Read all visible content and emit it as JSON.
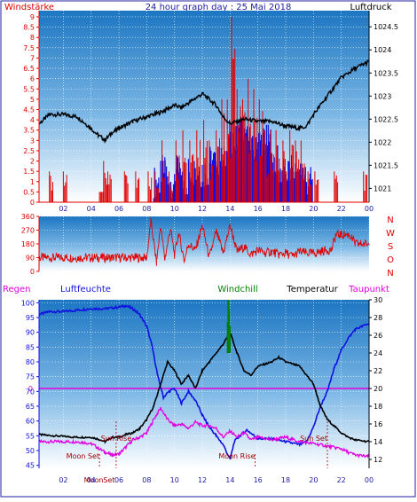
{
  "colors": {
    "red": "#e00000",
    "blue": "#1010e0",
    "navy": "#2020a0",
    "magenta": "#e000e0",
    "black": "#000000",
    "green": "#008000",
    "darkred": "#a00000"
  },
  "header": {
    "left": "Windstärke",
    "center": "24 hour graph day : 25 Mai 2018",
    "right": "Luftdruck"
  },
  "middle": {
    "right_letters": [
      "N",
      "W",
      "S",
      "O",
      "N"
    ]
  },
  "bottom_header": {
    "regen": "Regen",
    "luftfeuchte": "Luftfeuchte",
    "windchill": "Windchill",
    "temperatur": "Temperatur",
    "taupunkt": "Taupunkt"
  },
  "chart_data": [
    {
      "type": "line",
      "panel": "wind-pressure",
      "x_ticks": [
        "02",
        "04",
        "06",
        "08",
        "10",
        "12",
        "14",
        "16",
        "18",
        "20",
        "22",
        "00"
      ],
      "left_axis_ticks": [
        "0",
        "0.5",
        "1",
        "1.5",
        "2",
        "2.5",
        "3",
        "3.5",
        "4",
        "4.5",
        "5",
        "5.5",
        "6",
        "6.5",
        "7",
        "7.5",
        "8",
        "8.5",
        "9"
      ],
      "left_range": [
        0,
        9.3
      ],
      "right_axis_ticks": [
        "1021",
        "1021.5",
        "1022",
        "1022.5",
        "1023",
        "1023.5",
        "1024",
        "1024.5"
      ],
      "right_range": [
        1020.7,
        1024.85
      ],
      "series": [
        {
          "color": "black",
          "x": [
            0.25,
            1,
            2,
            3,
            4,
            4.5,
            5,
            5.5,
            6,
            7,
            8,
            9,
            10,
            10.5,
            11,
            12,
            13,
            13.5,
            14,
            15,
            16,
            17,
            18,
            19,
            19.5,
            20,
            21,
            22,
            23,
            24
          ],
          "y": [
            1022.4,
            1022.6,
            1022.6,
            1022.55,
            1022.3,
            1022.15,
            1022.05,
            1022.2,
            1022.3,
            1022.45,
            1022.55,
            1022.65,
            1022.8,
            1022.75,
            1022.85,
            1023.05,
            1022.8,
            1022.55,
            1022.4,
            1022.5,
            1022.45,
            1022.45,
            1022.35,
            1022.3,
            1022.35,
            1022.6,
            1023,
            1023.4,
            1023.6,
            1023.75
          ]
        },
        {
          "color": "red",
          "style": "gust-spikes",
          "x": [
            1,
            2,
            4.6,
            4.9,
            5.2,
            6.4,
            7.2,
            8.1,
            8.6,
            9.1,
            9.6,
            10.1,
            10.6,
            11.1,
            11.6,
            12.1,
            12.5,
            13.0,
            13.4,
            13.8,
            14.1,
            14.5,
            14.9,
            15.3,
            15.7,
            16.1,
            16.5,
            16.9,
            17.3,
            17.8,
            18.3,
            18.7,
            19.1,
            19.6,
            20.1,
            21.5,
            23.6
          ],
          "y": [
            1.5,
            1.5,
            0.5,
            2,
            1.5,
            1.5,
            1.5,
            1.5,
            1.5,
            3,
            1.5,
            3,
            3.5,
            3,
            3.5,
            4,
            3,
            3.5,
            5,
            5,
            9,
            5.5,
            5,
            6,
            5.5,
            5,
            3.5,
            3.5,
            3.5,
            3,
            3.5,
            3,
            3,
            1.5,
            1.5,
            1.5,
            1.5
          ]
        },
        {
          "color": "blue",
          "style": "wind-bars",
          "x": [
            8.5,
            9,
            9.5,
            10,
            10.5,
            11,
            11.5,
            12,
            12.5,
            13,
            13.5,
            14,
            14.5,
            15,
            15.5,
            16,
            16.5,
            17,
            17.5,
            18,
            18.5,
            19,
            19.5
          ],
          "y": [
            1,
            1.5,
            1,
            1.5,
            1,
            1.5,
            1.5,
            1.5,
            2,
            2,
            2.5,
            3,
            3.5,
            3,
            2.5,
            3,
            3,
            2,
            1.5,
            1.5,
            1.5,
            1.5,
            1
          ]
        }
      ]
    },
    {
      "type": "line",
      "panel": "wind-direction",
      "x_ticks": [
        "02",
        "04",
        "06",
        "08",
        "10",
        "12",
        "14",
        "16",
        "18",
        "20",
        "22",
        "00"
      ],
      "y_ticks": [
        "0",
        "90",
        "180",
        "270",
        "360"
      ],
      "y_range": [
        0,
        360
      ],
      "series": [
        {
          "color": "red",
          "x": [
            0.25,
            2,
            4,
            6,
            8,
            8.3,
            8.7,
            9,
            9.3,
            9.7,
            10,
            10.3,
            10.7,
            11,
            11.5,
            12,
            12.5,
            13,
            13.5,
            14,
            14.5,
            15,
            15.5,
            16,
            16.5,
            17,
            17.5,
            18,
            18.5,
            19,
            19.5,
            20,
            20.5,
            21,
            21.3,
            21.6,
            22.6,
            23,
            24
          ],
          "y": [
            90,
            90,
            90,
            90,
            90,
            330,
            60,
            300,
            80,
            280,
            110,
            250,
            70,
            180,
            140,
            300,
            90,
            260,
            120,
            300,
            130,
            160,
            110,
            140,
            120,
            130,
            110,
            120,
            100,
            130,
            120,
            120,
            130,
            140,
            140,
            240,
            240,
            180,
            180
          ]
        }
      ]
    },
    {
      "type": "line",
      "panel": "humidity-temperature",
      "x_ticks": [
        "02",
        "04",
        "06",
        "08",
        "10",
        "12",
        "14",
        "16",
        "18",
        "20",
        "22",
        "00"
      ],
      "left_axis_ticks": [
        "45",
        "50",
        "55",
        "60",
        "65",
        "70",
        "75",
        "80",
        "85",
        "90",
        "95",
        "100"
      ],
      "left_range": [
        44,
        101
      ],
      "right_axis_ticks": [
        "12",
        "14",
        "16",
        "18",
        "20",
        "22",
        "24",
        "26",
        "28",
        "30"
      ],
      "right_range": [
        11,
        30
      ],
      "regen_value": "0",
      "annotations": [
        "Sun Rise",
        "Moon Set",
        "Sun Set",
        "Moon Rise",
        "MoonSet"
      ],
      "series": [
        {
          "color": "blue",
          "axis": "left",
          "x": [
            0.25,
            1,
            2,
            3,
            4,
            5,
            6,
            6.5,
            7,
            7.5,
            8,
            8.4,
            8.8,
            9.2,
            9.6,
            10,
            10.5,
            11,
            11.5,
            12,
            12.5,
            13,
            13.5,
            14,
            14.3,
            14.7,
            15.2,
            16,
            17,
            18,
            19,
            19.5,
            20,
            20.5,
            21,
            21.5,
            22,
            22.5,
            23,
            24
          ],
          "y": [
            96,
            97,
            97,
            97.5,
            98,
            98,
            98.5,
            99,
            98,
            96,
            92,
            85,
            75,
            68,
            70,
            71,
            66,
            70,
            67,
            62,
            58,
            55,
            52,
            47,
            53,
            55,
            57,
            54,
            54,
            53,
            52,
            53,
            58,
            65,
            70,
            78,
            84,
            88,
            91,
            93
          ]
        },
        {
          "color": "black",
          "axis": "right",
          "x": [
            0.25,
            1,
            2,
            3,
            4,
            4.5,
            5,
            5.5,
            6,
            6.5,
            7,
            7.5,
            8,
            8.5,
            9,
            9.5,
            10,
            10.5,
            11,
            11.5,
            12,
            12.5,
            13,
            13.5,
            14,
            14.5,
            15,
            15.5,
            16,
            17,
            17.5,
            18,
            19,
            19.5,
            20,
            20.5,
            21,
            22,
            22.5,
            23,
            24
          ],
          "y": [
            14.8,
            14.7,
            14.6,
            14.5,
            14.5,
            14.3,
            14,
            14.5,
            14.5,
            14.8,
            15,
            15.5,
            16.5,
            18,
            20.5,
            23,
            22,
            20.5,
            21.5,
            20,
            22,
            23,
            24,
            25,
            26.3,
            24,
            22,
            21.5,
            22.5,
            23,
            23.5,
            23,
            22.5,
            21.5,
            20.5,
            18,
            16.5,
            15,
            14.5,
            14.2,
            14
          ]
        },
        {
          "color": "magenta",
          "axis": "right",
          "x": [
            0.25,
            1,
            2,
            3,
            4,
            4.5,
            5,
            5.5,
            6,
            7,
            7.5,
            8,
            8.5,
            9,
            9.5,
            10,
            10.5,
            11,
            11.5,
            12,
            12.5,
            13,
            13.5,
            14,
            14.5,
            15,
            15.5,
            16,
            17,
            18,
            19,
            20,
            21,
            22,
            22.5,
            23,
            24
          ],
          "y": [
            14,
            14,
            14,
            14,
            13.8,
            13.3,
            12.8,
            12.5,
            12.6,
            14.2,
            14.5,
            15,
            16.5,
            17.8,
            16.5,
            15.8,
            16,
            15.5,
            16.2,
            15.8,
            15.8,
            15.5,
            14.5,
            15.2,
            14.5,
            15,
            14.2,
            14.5,
            14.2,
            14.5,
            14,
            13.8,
            13.5,
            13.2,
            12.8,
            12.5,
            12.3
          ]
        },
        {
          "color": "green",
          "axis": "right",
          "style": "spike",
          "x": [
            13.8,
            13.85,
            13.9,
            13.95,
            14.0
          ],
          "y": [
            27.5,
            30,
            30,
            29,
            27
          ]
        }
      ]
    }
  ]
}
